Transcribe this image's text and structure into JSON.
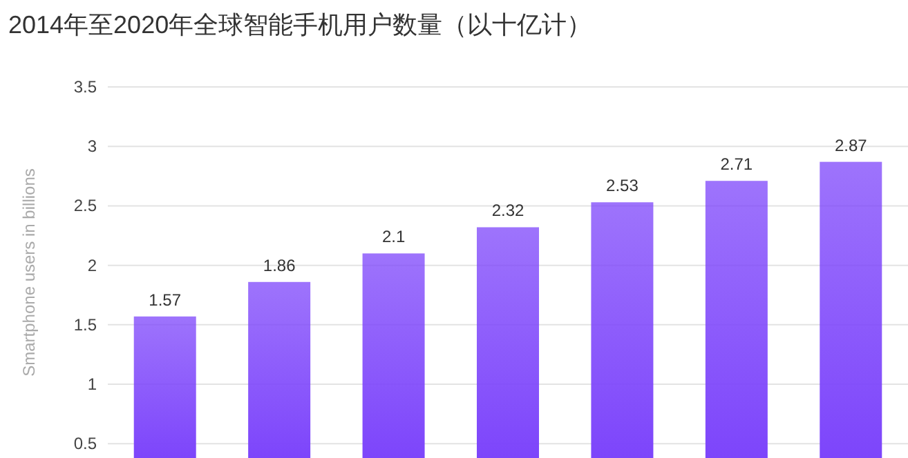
{
  "chart_data": {
    "type": "bar",
    "title": "2014年至2020年全球智能手机用户数量（以十亿计）",
    "ylabel": "Smartphone users in billions",
    "categories": [
      null,
      null,
      null,
      null,
      null,
      null,
      null
    ],
    "values": [
      1.57,
      1.86,
      2.1,
      2.32,
      2.53,
      2.71,
      2.87
    ],
    "color": "#7d45fb",
    "ylim": [
      0.38,
      3.5
    ],
    "yticks": [
      0.5,
      1,
      1.5,
      2,
      2.5,
      3,
      3.5
    ],
    "grid": "y",
    "data_labels": true,
    "tick_labels": "y"
  }
}
